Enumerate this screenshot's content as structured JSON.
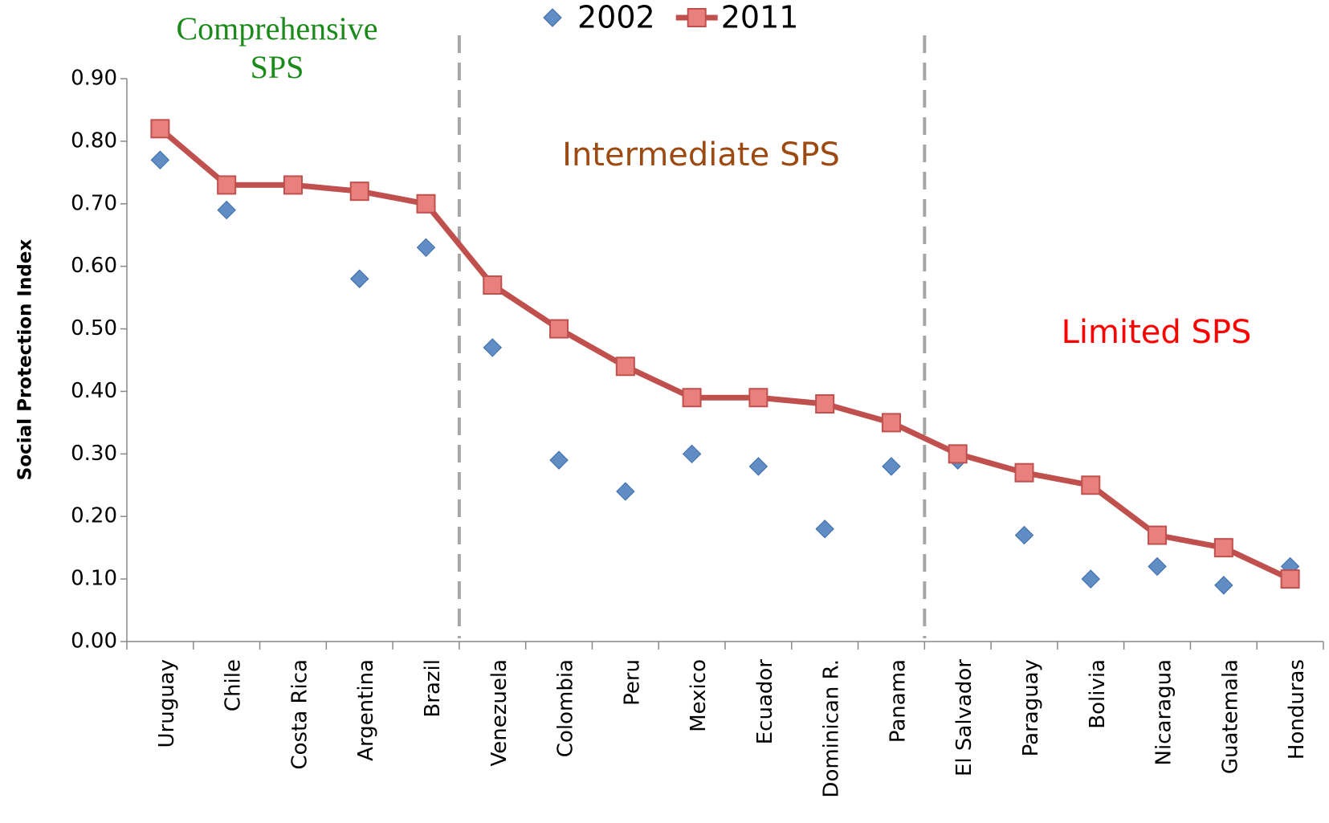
{
  "chart_data": {
    "type": "line",
    "y_label": "Social Protection Index",
    "categories": [
      "Uruguay",
      "Chile",
      "Costa Rica",
      "Argentina",
      "Brazil",
      "Venezuela",
      "Colombia",
      "Peru",
      "Mexico",
      "Ecuador",
      "Dominican R.",
      "Panama",
      "El Salvador",
      "Paraguay",
      "Bolivia",
      "Nicaragua",
      "Guatemala",
      "Honduras"
    ],
    "series": [
      {
        "name": "2002",
        "color": "#4f81bd",
        "marker": "diamond",
        "line": false,
        "values": [
          0.77,
          0.69,
          0.73,
          0.58,
          0.63,
          0.47,
          0.29,
          0.24,
          0.3,
          0.28,
          0.18,
          0.28,
          0.29,
          0.17,
          0.1,
          0.12,
          0.09,
          0.12
        ]
      },
      {
        "name": "2011",
        "color": "#c0504d",
        "marker": "square",
        "line": true,
        "values": [
          0.82,
          0.73,
          0.73,
          0.72,
          0.7,
          0.57,
          0.5,
          0.44,
          0.39,
          0.39,
          0.38,
          0.35,
          0.3,
          0.27,
          0.25,
          0.17,
          0.15,
          0.1
        ]
      }
    ],
    "ylim": [
      0,
      0.9
    ],
    "yticks": [
      {
        "value": 0,
        "label": "0.00"
      },
      {
        "value": 0.1,
        "label": "0.10"
      },
      {
        "value": 0.2,
        "label": "0.20"
      },
      {
        "value": 0.3,
        "label": "0.30"
      },
      {
        "value": 0.4,
        "label": "0.40"
      },
      {
        "value": 0.5,
        "label": "0.50"
      },
      {
        "value": 0.6,
        "label": "0.60"
      },
      {
        "value": 0.7,
        "label": "0.70"
      },
      {
        "value": 0.8,
        "label": "0.80"
      },
      {
        "value": 0.9,
        "label": "0.90"
      }
    ],
    "grid": false,
    "legend": "top",
    "annotations": [
      {
        "lines": [
          "Comprehensive",
          "SPS"
        ],
        "color": "#1b8a1b"
      },
      {
        "lines": [
          "Intermediate SPS"
        ],
        "color": "#9c4a12"
      },
      {
        "lines": [
          "Limited SPS"
        ],
        "color": "#ff0000"
      }
    ]
  }
}
